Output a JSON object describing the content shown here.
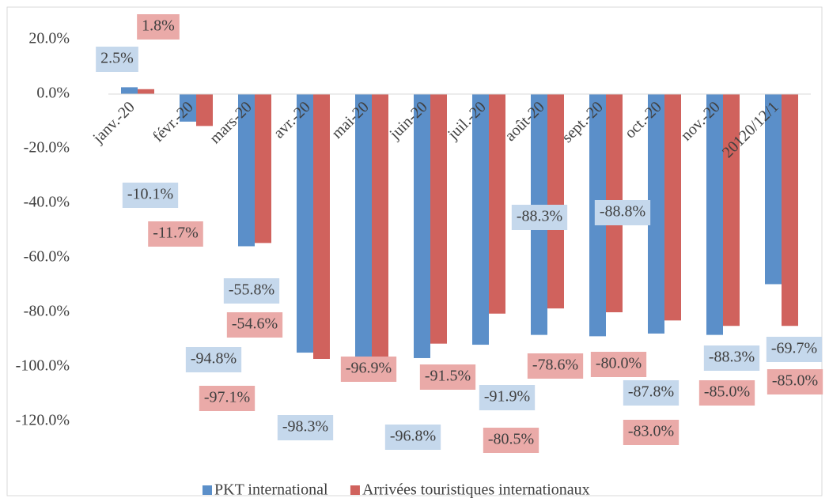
{
  "chart_data": {
    "type": "bar",
    "categories": [
      "janv.-20",
      "févr.-20",
      "mars-20",
      "avr.-20",
      "mai-20",
      "juin-20",
      "juil.-20",
      "août-20",
      "sept.-20",
      "oct.-20",
      "nov.-20",
      "20120/12/1"
    ],
    "series": [
      {
        "name": "PKT international",
        "color": "#5b8fc9",
        "values": [
          2.5,
          -10.1,
          -55.8,
          -94.8,
          -98.3,
          -96.8,
          -91.9,
          -88.3,
          -88.8,
          -87.8,
          -88.3,
          -69.7
        ],
        "value_labels": [
          "2.5%",
          "-10.1%",
          "-55.8%",
          "-94.8%",
          "-98.3%",
          "-96.8%",
          "-91.9%",
          "-88.3%",
          "-88.8%",
          "-87.8%",
          "-88.3%",
          "-69.7%"
        ]
      },
      {
        "name": "Arrivées touristiques internationaux",
        "color": "#d0625d",
        "values": [
          1.8,
          -11.7,
          -54.6,
          -97.1,
          -96.9,
          -91.5,
          -80.5,
          -78.6,
          -80.0,
          -83.0,
          -85.0,
          -85.0
        ],
        "value_labels": [
          "1.8%",
          "-11.7%",
          "-54.6%",
          "-97.1%",
          "-96.9%",
          "-91.5%",
          "-80.5%",
          "-78.6%",
          "-80.0%",
          "-83.0%",
          "-85.0%",
          "-85.0%"
        ]
      }
    ],
    "ylim": [
      -120,
      20
    ],
    "yticks": [
      {
        "value": 20,
        "label": "20.0%"
      },
      {
        "value": 0,
        "label": "0.0%"
      },
      {
        "value": -20,
        "label": "-20.0%"
      },
      {
        "value": -40,
        "label": "-40.0%"
      },
      {
        "value": -60,
        "label": "-60.0%"
      },
      {
        "value": -80,
        "label": "-80.0%"
      },
      {
        "value": -100,
        "label": "-100.0%"
      },
      {
        "value": -120,
        "label": "-120.0%"
      }
    ],
    "grid": false,
    "legend": "bottom"
  }
}
